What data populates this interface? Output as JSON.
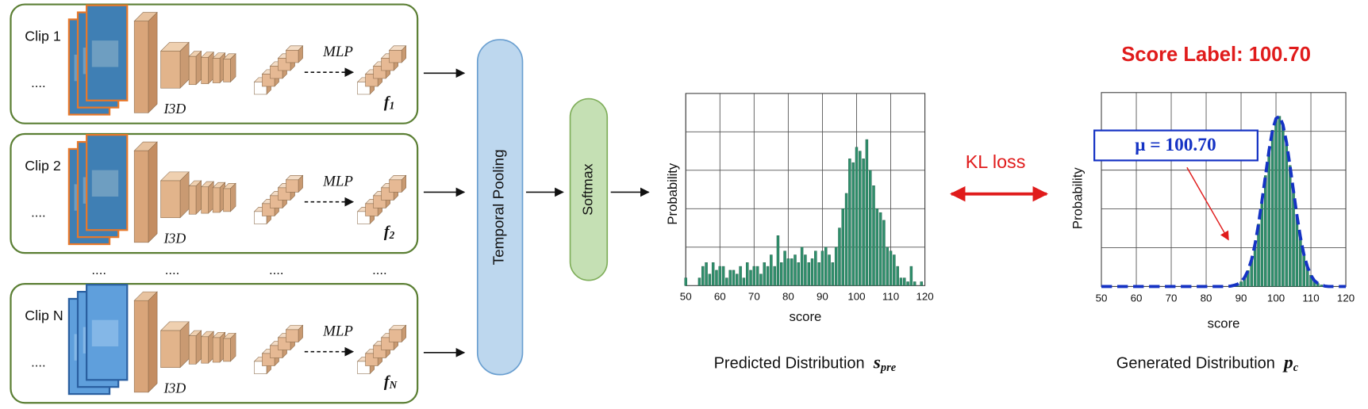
{
  "clips": [
    {
      "label": "Clip 1",
      "index": "1"
    },
    {
      "label": "Clip 2",
      "index": "2"
    },
    {
      "label": "Clip N",
      "index": "N"
    }
  ],
  "feature": "f",
  "ellipsis": "....",
  "mlp": "MLP",
  "backbone": "I3D",
  "temporal_pooling": "Temporal  Pooling",
  "softmax": "Softmax",
  "kl_loss": "KL loss",
  "score_label": "Score Label: 100.70",
  "mu_label": "μ = 100.70",
  "chart_data": [
    {
      "type": "bar",
      "xlabel": "score",
      "ylabel": "Probability",
      "caption": "Predicted Distribution",
      "caption_symbol": "s",
      "caption_sub": "pre",
      "x": [
        50,
        51,
        52,
        53,
        54,
        55,
        56,
        57,
        58,
        59,
        60,
        61,
        62,
        63,
        64,
        65,
        66,
        67,
        68,
        69,
        70,
        71,
        72,
        73,
        74,
        75,
        76,
        77,
        78,
        79,
        80,
        81,
        82,
        83,
        84,
        85,
        86,
        87,
        88,
        89,
        90,
        91,
        92,
        93,
        94,
        95,
        96,
        97,
        98,
        99,
        100,
        101,
        102,
        103,
        104,
        105,
        106,
        107,
        108,
        109,
        110,
        111,
        112,
        113,
        114,
        115,
        116,
        117,
        118,
        119,
        120
      ],
      "values": [
        0.2,
        0,
        0,
        0,
        0.2,
        0.5,
        0.6,
        0.3,
        0.6,
        0.4,
        0.5,
        0.5,
        0.2,
        0.4,
        0.4,
        0.3,
        0.5,
        0.2,
        0.6,
        0.4,
        0.5,
        0.5,
        0.3,
        0.6,
        0.5,
        0.8,
        0.5,
        1.3,
        0.6,
        0.9,
        0.7,
        0.7,
        0.8,
        0.6,
        1.0,
        0.8,
        0.6,
        0.7,
        0.9,
        0.6,
        0.9,
        1.0,
        0.8,
        0.6,
        1.0,
        1.5,
        2.0,
        2.4,
        3.3,
        3.2,
        3.6,
        3.5,
        3.3,
        3.8,
        3.0,
        2.6,
        2.0,
        1.9,
        1.7,
        1.0,
        0.9,
        0.8,
        0.5,
        0.2,
        0.2,
        0.1,
        0.5,
        0.1,
        0,
        0.1,
        0
      ],
      "color": "#2f8f6c",
      "xlim": [
        50,
        120
      ],
      "xticks": [
        50,
        60,
        70,
        80,
        90,
        100,
        110,
        120
      ],
      "ylim": [
        0,
        5
      ],
      "grid": true
    },
    {
      "type": "bar",
      "xlabel": "score",
      "ylabel": "Probability",
      "caption": "Generated Distribution",
      "caption_symbol": "p",
      "caption_sub": "c",
      "x": [
        50,
        51,
        52,
        53,
        54,
        55,
        56,
        57,
        58,
        59,
        60,
        61,
        62,
        63,
        64,
        65,
        66,
        67,
        68,
        69,
        70,
        71,
        72,
        73,
        74,
        75,
        76,
        77,
        78,
        79,
        80,
        81,
        82,
        83,
        84,
        85,
        86,
        87,
        88,
        89,
        90,
        91,
        92,
        93,
        94,
        95,
        96,
        97,
        98,
        99,
        100,
        101,
        102,
        103,
        104,
        105,
        106,
        107,
        108,
        109,
        110,
        111,
        112,
        113,
        114,
        115,
        116,
        117,
        118,
        119,
        120
      ],
      "values": [
        0,
        0,
        0,
        0,
        0,
        0,
        0,
        0,
        0,
        0,
        0,
        0,
        0,
        0,
        0,
        0,
        0,
        0,
        0,
        0,
        0,
        0,
        0,
        0,
        0,
        0,
        0,
        0,
        0,
        0,
        0,
        0,
        0,
        0,
        0,
        0,
        0,
        0.01,
        0.03,
        0.06,
        0.12,
        0.23,
        0.41,
        0.69,
        1.09,
        1.61,
        2.22,
        2.86,
        3.5,
        4.03,
        4.33,
        4.39,
        4.17,
        3.72,
        3.12,
        2.47,
        1.83,
        1.27,
        0.82,
        0.51,
        0.29,
        0.15,
        0.08,
        0.04,
        0.01,
        0,
        0,
        0,
        0,
        0,
        0
      ],
      "color": "#2f8f6c",
      "line_color": "#1533c4",
      "xlim": [
        50,
        120
      ],
      "xticks": [
        50,
        60,
        70,
        80,
        90,
        100,
        110,
        120
      ],
      "ylim": [
        0,
        5
      ],
      "grid": true
    }
  ]
}
